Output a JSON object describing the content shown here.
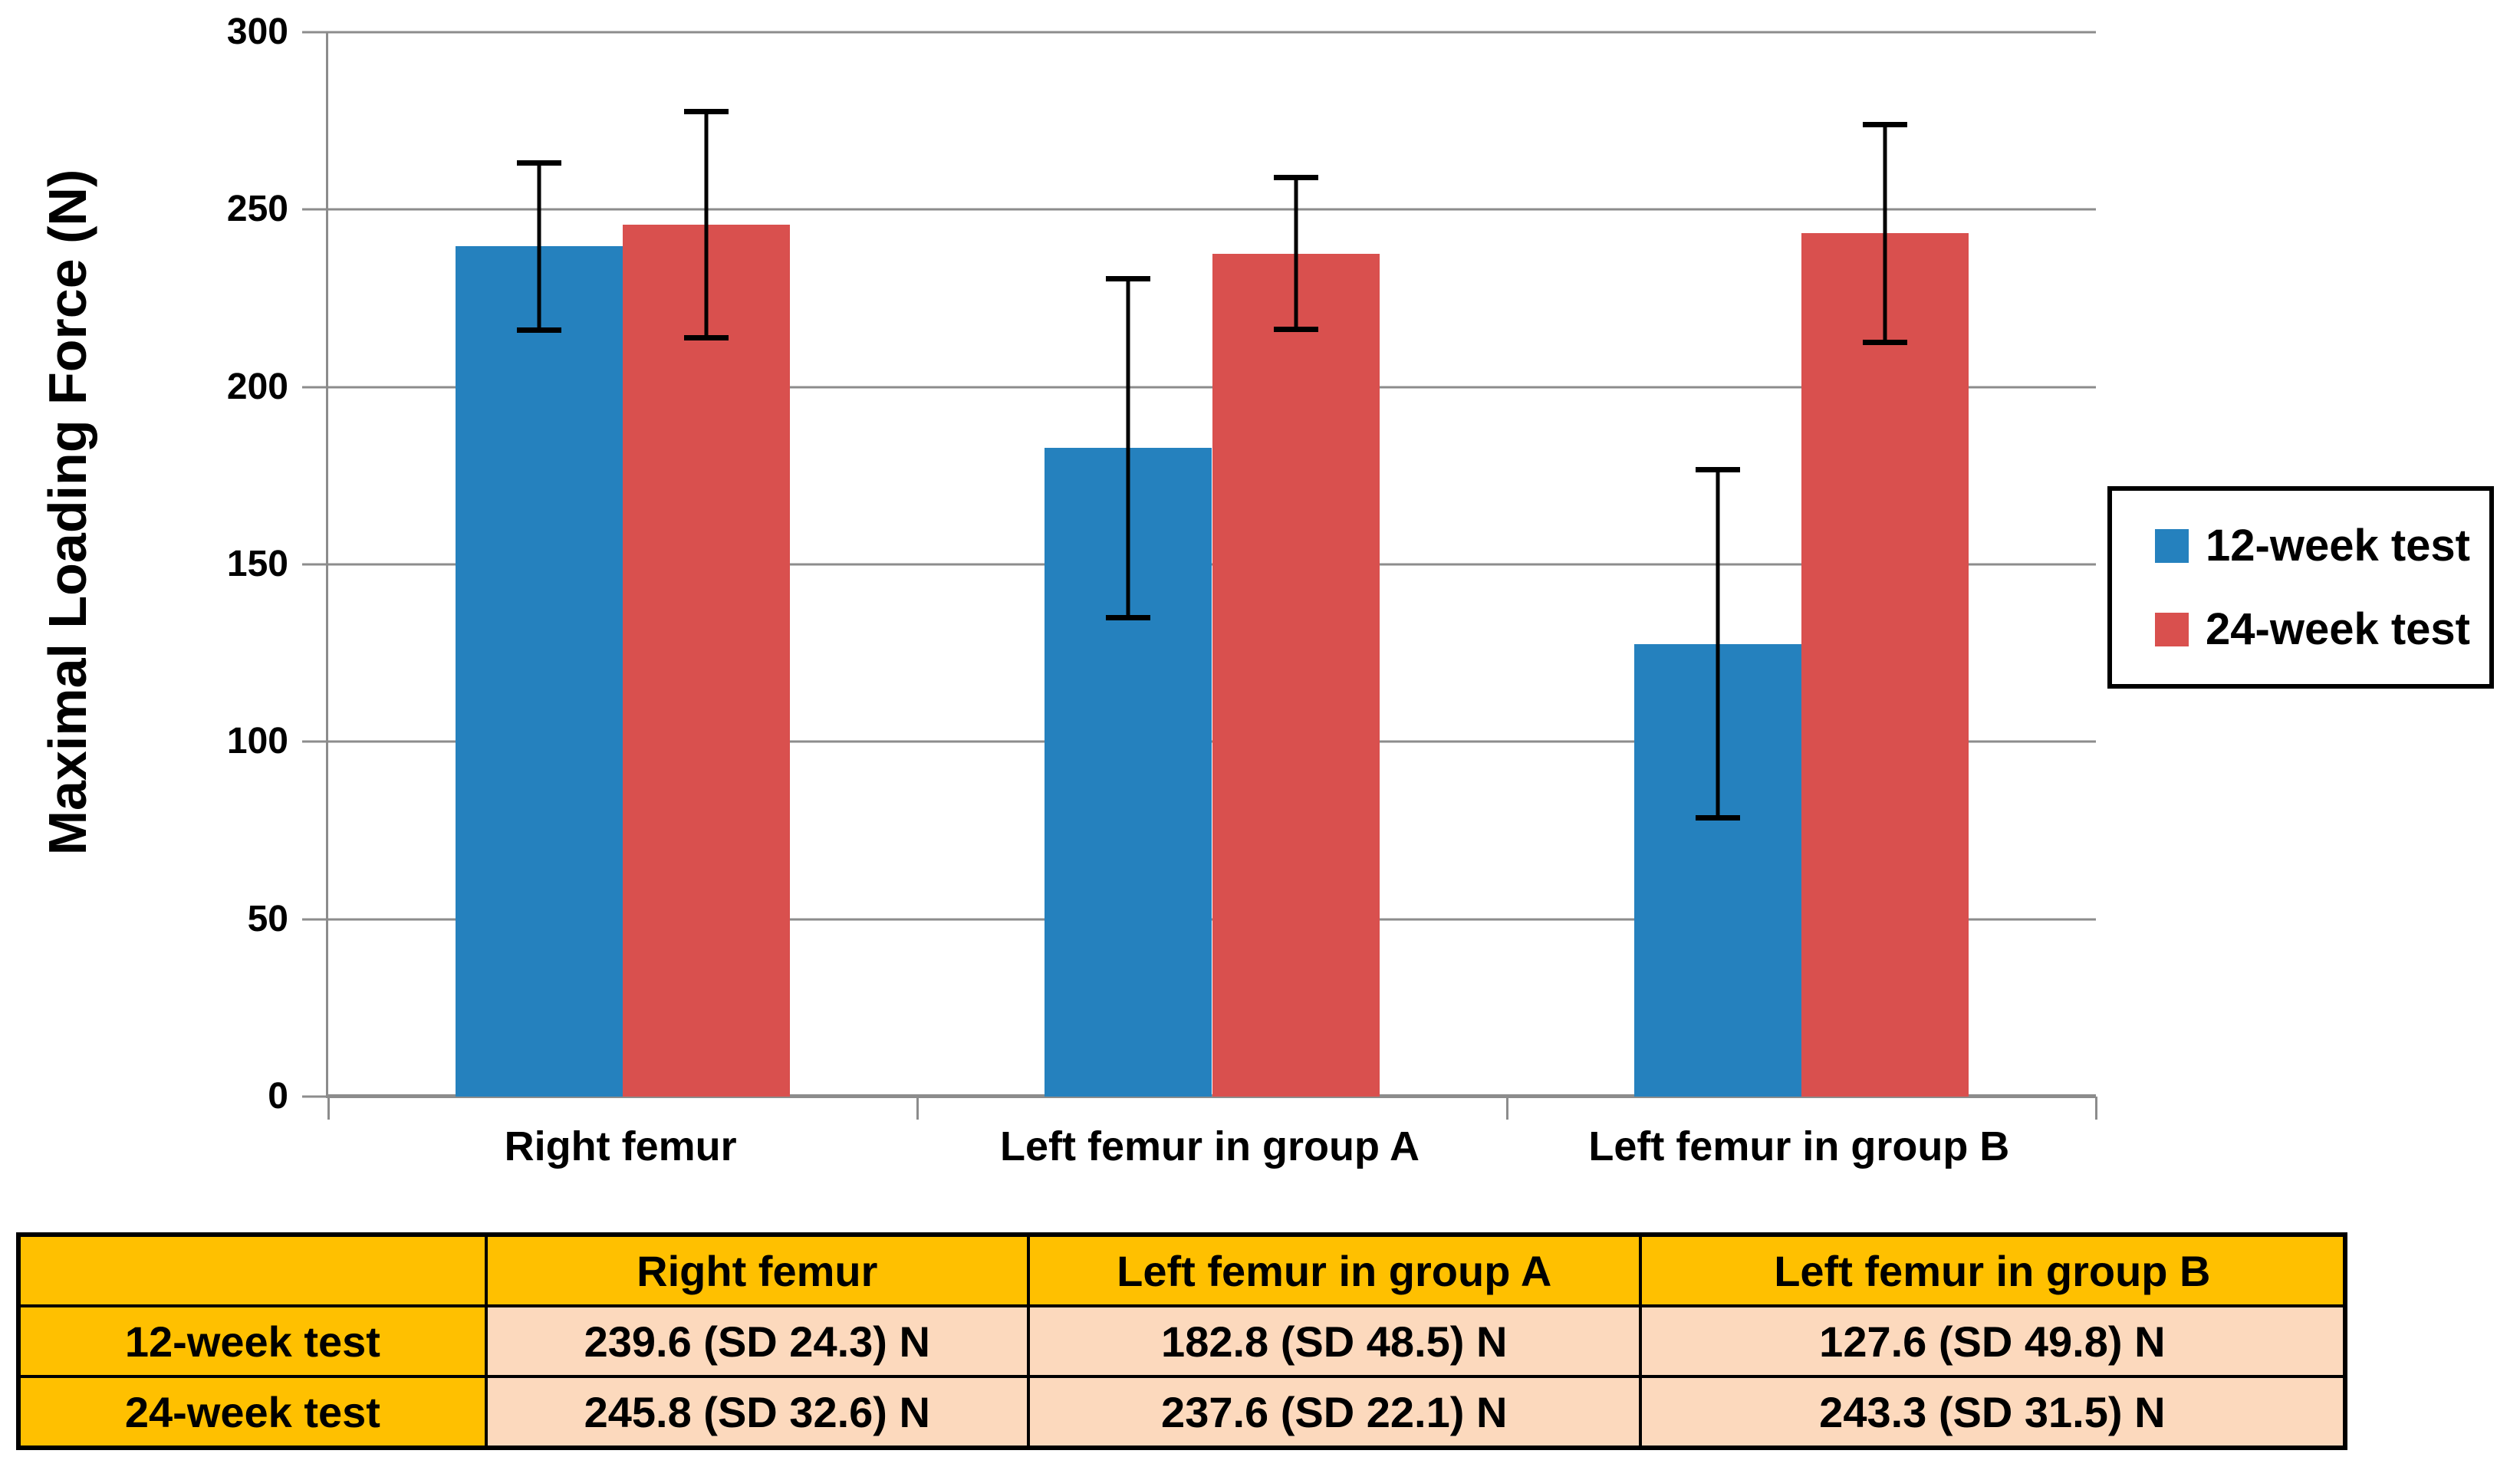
{
  "chart_data": {
    "type": "bar",
    "title": "",
    "xlabel": "",
    "ylabel": "Maximal Loading Force (N)",
    "ylim": [
      0,
      300
    ],
    "ytick_step": 50,
    "yticks": [
      0,
      50,
      100,
      150,
      200,
      250,
      300
    ],
    "grid": true,
    "legend_position": "right",
    "error_bars": "±1 SD",
    "axis_color": "#8C8C8C",
    "categories": [
      "Right femur",
      "Left femur in group A",
      "Left femur in group B"
    ],
    "series": [
      {
        "name": "12-week test",
        "color": "#2581BE",
        "values": [
          239.6,
          182.8,
          127.6
        ],
        "sd": [
          24.3,
          48.5,
          49.8
        ]
      },
      {
        "name": "24-week test",
        "color": "#D9504E",
        "values": [
          245.8,
          237.6,
          243.3
        ],
        "sd": [
          32.6,
          22.1,
          31.5
        ]
      }
    ]
  },
  "legend": {
    "entries": [
      {
        "label": "12-week test",
        "color": "#2581BE"
      },
      {
        "label": "24-week test",
        "color": "#D9504E"
      }
    ]
  },
  "table": {
    "header_bg": "#FFC000",
    "cell_bg": "#FCD9BD",
    "headers": [
      "",
      "Right femur",
      "Left femur in group A",
      "Left femur in group B"
    ],
    "rows": [
      {
        "label": "12-week test",
        "cells": [
          "239.6 (SD 24.3) N",
          "182.8 (SD 48.5) N",
          "127.6 (SD 49.8) N"
        ]
      },
      {
        "label": "24-week test",
        "cells": [
          "245.8 (SD 32.6) N",
          "237.6 (SD 22.1) N",
          "243.3 (SD 31.5) N"
        ]
      }
    ]
  }
}
